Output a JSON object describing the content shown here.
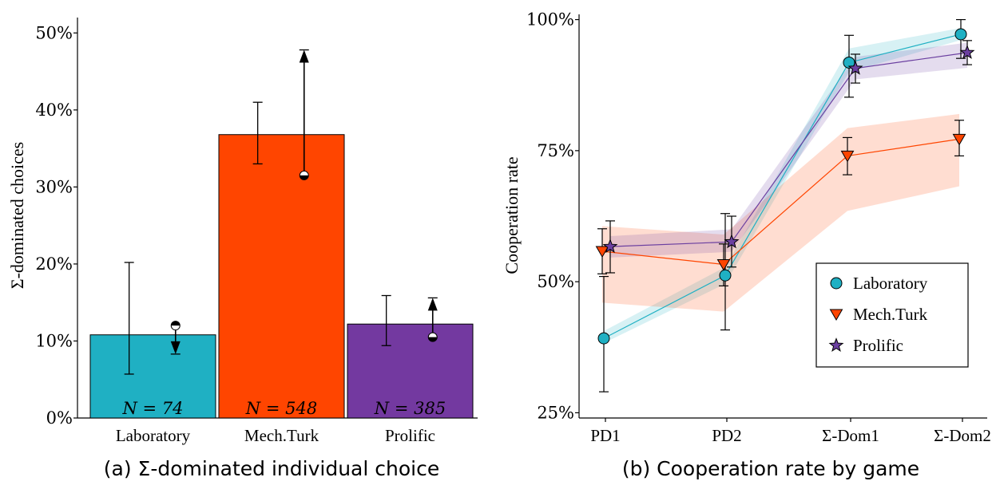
{
  "chart_data": [
    {
      "type": "bar",
      "panel": "(A)",
      "caption": "(a) Σ-dominated individual choice",
      "ylabel": "Σ-dominated choices",
      "ylim": [
        0,
        52
      ],
      "yticks": [
        "0%",
        "10%",
        "20%",
        "30%",
        "40%",
        "50%"
      ],
      "ytick_values": [
        0,
        10,
        20,
        30,
        40,
        50
      ],
      "categories": [
        "Laboratory",
        "Mech.Turk",
        "Prolific"
      ],
      "values": [
        10.8,
        36.8,
        12.2
      ],
      "error_low": [
        5.7,
        33.0,
        9.4
      ],
      "error_high": [
        20.2,
        41.0,
        15.9
      ],
      "n_labels": [
        "N = 74",
        "N = 548",
        "N = 385"
      ],
      "arrow_markers": [
        {
          "start": 12.0,
          "end": 8.3,
          "direction": "down"
        },
        {
          "start": 31.5,
          "end": 47.8,
          "direction": "up"
        },
        {
          "start": 10.5,
          "end": 15.6,
          "direction": "up"
        }
      ],
      "colors": [
        "#1fb0c3",
        "#ff4500",
        "#7339a0"
      ]
    },
    {
      "type": "line",
      "panel": "(B)",
      "caption": "(b) Cooperation rate by game",
      "ylabel": "Cooperation rate",
      "ylim": [
        24,
        101
      ],
      "yticks": [
        "25%",
        "50%",
        "75%",
        "100%"
      ],
      "ytick_values": [
        25,
        50,
        75,
        100
      ],
      "categories": [
        "PD1",
        "PD2",
        "Σ-Dom1",
        "Σ-Dom2"
      ],
      "legend_position": "right-middle",
      "series": [
        {
          "name": "Laboratory",
          "color": "#1fb0c3",
          "marker": "circle",
          "values": [
            39.2,
            51.2,
            91.8,
            97.2
          ],
          "error_low": [
            29.0,
            40.8,
            85.2,
            92.6
          ],
          "error_high": [
            51.0,
            63.0,
            97.0,
            100.0
          ],
          "band_low": [
            38.3,
            49.6,
            90.0,
            96.1
          ],
          "band_high": [
            40.6,
            52.8,
            94.5,
            98.4
          ]
        },
        {
          "name": "Mech.Turk",
          "color": "#ff4500",
          "marker": "triangle-down",
          "values": [
            55.8,
            53.3,
            74.0,
            77.2
          ],
          "error_low": [
            51.5,
            49.2,
            70.4,
            74.0
          ],
          "error_high": [
            60.1,
            57.2,
            77.5,
            80.8
          ],
          "band_low": [
            46.0,
            44.3,
            63.5,
            68.2
          ],
          "band_high": [
            60.6,
            59.0,
            79.3,
            82.0
          ]
        },
        {
          "name": "Prolific",
          "color": "#6b3fa0",
          "marker": "star",
          "values": [
            56.7,
            57.6,
            90.7,
            93.7
          ],
          "error_low": [
            51.7,
            52.8,
            87.9,
            91.4
          ],
          "error_high": [
            61.6,
            62.5,
            93.4,
            96.0
          ],
          "band_low": [
            54.6,
            55.7,
            88.6,
            90.8
          ],
          "band_high": [
            58.7,
            60.0,
            92.9,
            95.6
          ]
        }
      ]
    }
  ]
}
